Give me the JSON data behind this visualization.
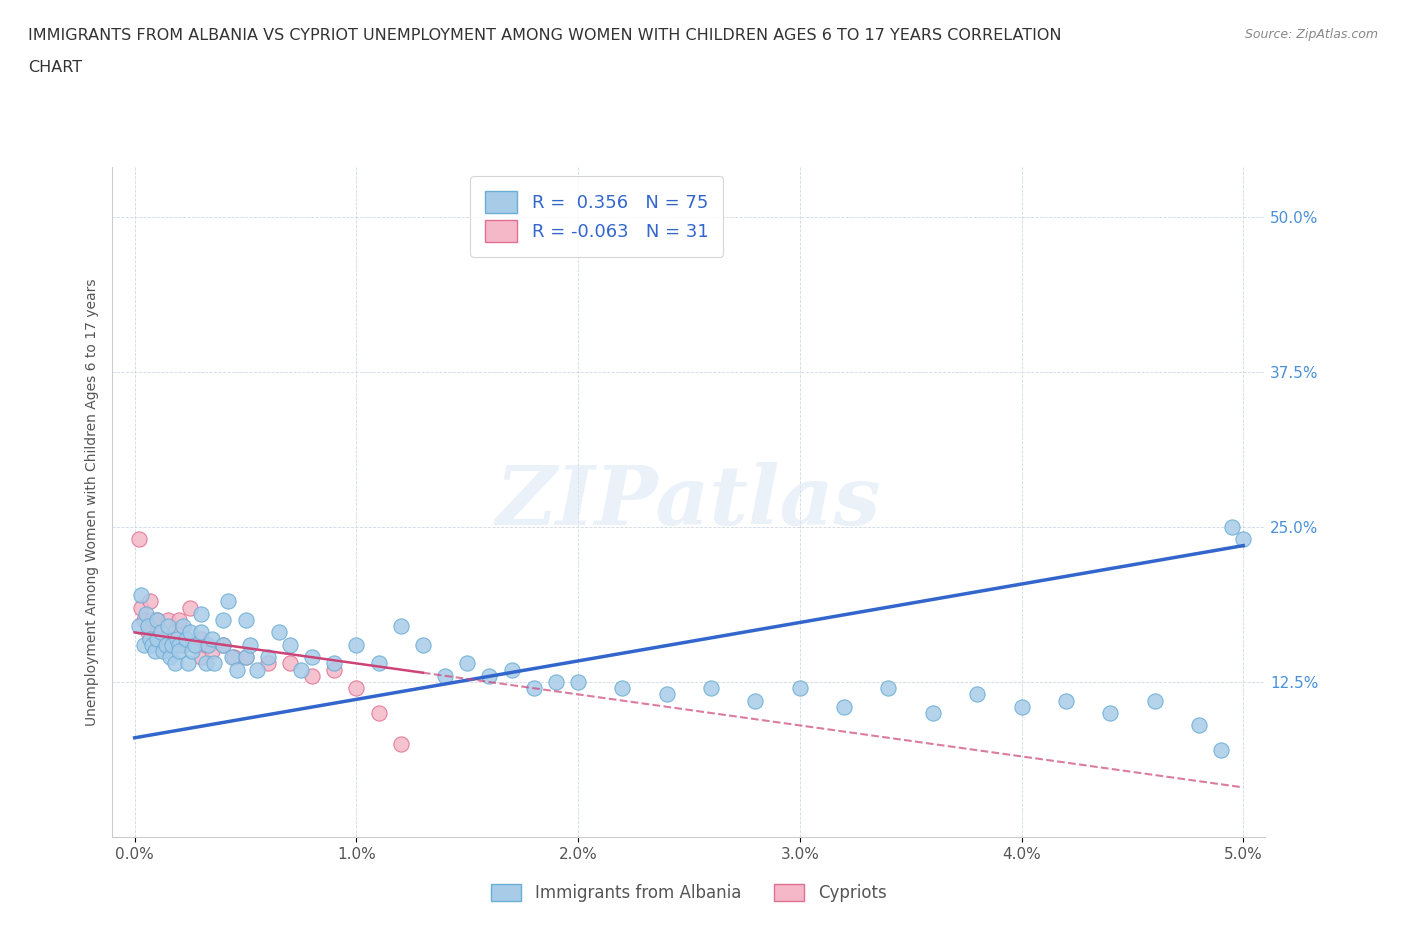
{
  "title_line1": "IMMIGRANTS FROM ALBANIA VS CYPRIOT UNEMPLOYMENT AMONG WOMEN WITH CHILDREN AGES 6 TO 17 YEARS CORRELATION",
  "title_line2": "CHART",
  "source": "Source: ZipAtlas.com",
  "ylabel": "Unemployment Among Women with Children Ages 6 to 17 years",
  "xlim": [
    0.0,
    0.05
  ],
  "ylim": [
    0.0,
    0.54
  ],
  "xticks": [
    0.0,
    0.01,
    0.02,
    0.03,
    0.04,
    0.05
  ],
  "xtick_labels": [
    "0.0%",
    "1.0%",
    "2.0%",
    "3.0%",
    "4.0%",
    "5.0%"
  ],
  "yticks": [
    0.0,
    0.125,
    0.25,
    0.375,
    0.5
  ],
  "ytick_labels": [
    "",
    "12.5%",
    "25.0%",
    "37.5%",
    "50.0%"
  ],
  "blue_color": "#a8cce8",
  "blue_edge": "#6aadd5",
  "pink_color": "#f4b8c8",
  "pink_edge": "#e07090",
  "trend_blue": "#3366cc",
  "trend_pink": "#cc4477",
  "watermark": "ZIPatlas",
  "R1": 0.356,
  "N1": 75,
  "R2": -0.063,
  "N2": 31,
  "legend_label1": "Immigrants from Albania",
  "legend_label2": "Cypriots",
  "blue_x": [
    0.0002,
    0.0003,
    0.0004,
    0.0005,
    0.0006,
    0.0007,
    0.0008,
    0.0009,
    0.001,
    0.001,
    0.0012,
    0.0013,
    0.0014,
    0.0015,
    0.0016,
    0.0017,
    0.0018,
    0.0019,
    0.002,
    0.002,
    0.0022,
    0.0023,
    0.0024,
    0.0025,
    0.0026,
    0.0027,
    0.003,
    0.003,
    0.0032,
    0.0033,
    0.0035,
    0.0036,
    0.004,
    0.004,
    0.0042,
    0.0044,
    0.0046,
    0.005,
    0.005,
    0.0052,
    0.0055,
    0.006,
    0.0065,
    0.007,
    0.0075,
    0.008,
    0.009,
    0.01,
    0.011,
    0.012,
    0.013,
    0.014,
    0.015,
    0.016,
    0.017,
    0.018,
    0.019,
    0.02,
    0.022,
    0.024,
    0.026,
    0.028,
    0.03,
    0.032,
    0.034,
    0.036,
    0.038,
    0.04,
    0.042,
    0.044,
    0.046,
    0.048,
    0.049,
    0.0495,
    0.05
  ],
  "blue_y": [
    0.17,
    0.195,
    0.155,
    0.18,
    0.17,
    0.16,
    0.155,
    0.15,
    0.175,
    0.16,
    0.165,
    0.15,
    0.155,
    0.17,
    0.145,
    0.155,
    0.14,
    0.16,
    0.155,
    0.15,
    0.17,
    0.16,
    0.14,
    0.165,
    0.15,
    0.155,
    0.18,
    0.165,
    0.14,
    0.155,
    0.16,
    0.14,
    0.175,
    0.155,
    0.19,
    0.145,
    0.135,
    0.175,
    0.145,
    0.155,
    0.135,
    0.145,
    0.165,
    0.155,
    0.135,
    0.145,
    0.14,
    0.155,
    0.14,
    0.17,
    0.155,
    0.13,
    0.14,
    0.13,
    0.135,
    0.12,
    0.125,
    0.125,
    0.12,
    0.115,
    0.12,
    0.11,
    0.12,
    0.105,
    0.12,
    0.1,
    0.115,
    0.105,
    0.11,
    0.1,
    0.11,
    0.09,
    0.07,
    0.25,
    0.24
  ],
  "pink_x": [
    0.0002,
    0.0003,
    0.0004,
    0.0006,
    0.0007,
    0.0008,
    0.001,
    0.001,
    0.0012,
    0.0013,
    0.0015,
    0.0016,
    0.0018,
    0.002,
    0.002,
    0.0022,
    0.0025,
    0.003,
    0.003,
    0.0032,
    0.0035,
    0.004,
    0.0045,
    0.005,
    0.006,
    0.007,
    0.008,
    0.009,
    0.01,
    0.011,
    0.012
  ],
  "pink_y": [
    0.24,
    0.185,
    0.175,
    0.165,
    0.19,
    0.175,
    0.175,
    0.165,
    0.16,
    0.155,
    0.175,
    0.155,
    0.165,
    0.175,
    0.155,
    0.155,
    0.185,
    0.16,
    0.145,
    0.155,
    0.15,
    0.155,
    0.145,
    0.145,
    0.14,
    0.14,
    0.13,
    0.135,
    0.12,
    0.1,
    0.075
  ],
  "blue_trend_x0": 0.0,
  "blue_trend_y0": 0.08,
  "blue_trend_x1": 0.05,
  "blue_trend_y1": 0.235,
  "pink_trend_x0": 0.0,
  "pink_trend_y0": 0.165,
  "pink_trend_x1": 0.05,
  "pink_trend_y1": 0.04
}
